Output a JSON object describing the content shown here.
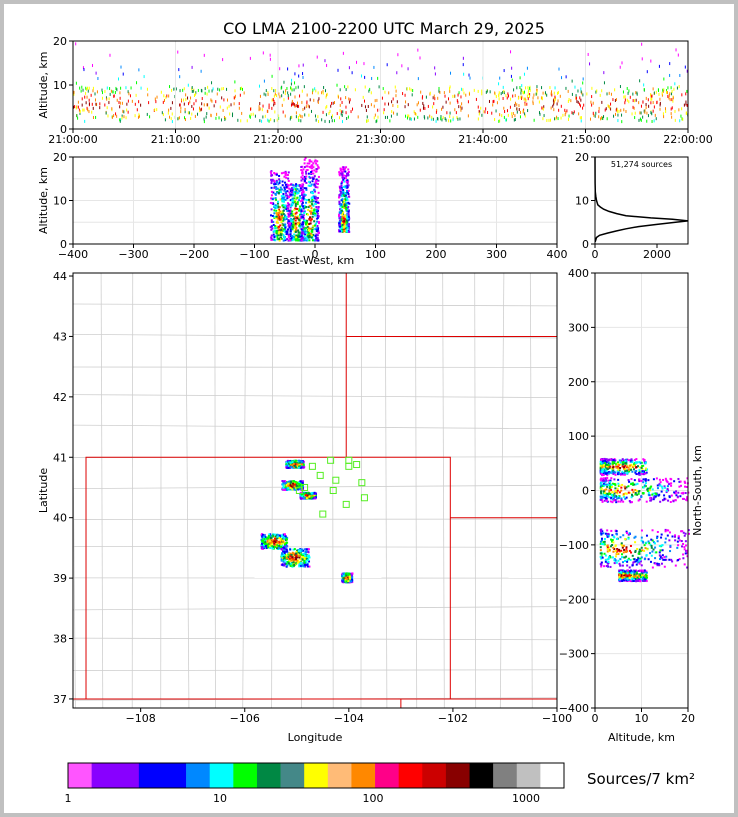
{
  "title": "CO LMA 2100-2200 UTC March 29, 2025",
  "chart_data": [
    {
      "type": "scatter",
      "panel": "altitude-time",
      "ylabel": "Altitude, km",
      "ylim": [
        0,
        20
      ],
      "yticks": [
        "0",
        "10",
        "20"
      ],
      "xticks": [
        "21:00:00",
        "21:10:00",
        "21:20:00",
        "21:30:00",
        "21:40:00",
        "21:50:00",
        "22:00:00"
      ]
    },
    {
      "type": "scatter",
      "panel": "east-west-altitude",
      "xlabel": "East-West, km",
      "ylabel": "Altitude, km",
      "xlim": [
        -400,
        400
      ],
      "ylim": [
        0,
        20
      ],
      "xticks": [
        "−400",
        "−300",
        "−200",
        "−100",
        "0",
        "100",
        "200",
        "300",
        "400"
      ],
      "yticks": [
        "0",
        "10",
        "20"
      ],
      "clusters": [
        {
          "x_min": -75,
          "x_max": -45,
          "alt_min": 1,
          "alt_max": 17
        },
        {
          "x_min": -45,
          "x_max": -20,
          "alt_min": 1,
          "alt_max": 14
        },
        {
          "x_min": -25,
          "x_max": 5,
          "alt_min": 1,
          "alt_max": 20
        },
        {
          "x_min": 38,
          "x_max": 55,
          "alt_min": 3,
          "alt_max": 18
        }
      ]
    },
    {
      "type": "line",
      "panel": "altitude-histogram",
      "annotation": "51,274 sources",
      "xlim": [
        0,
        3000
      ],
      "ylim": [
        0,
        20
      ],
      "xticks": [
        "0",
        "2000"
      ],
      "yticks": [
        "0",
        "10",
        "20"
      ],
      "profile": [
        {
          "alt": 0.5,
          "count": 5
        },
        {
          "alt": 1.5,
          "count": 50
        },
        {
          "alt": 2,
          "count": 150
        },
        {
          "alt": 2.5,
          "count": 400
        },
        {
          "alt": 3,
          "count": 700
        },
        {
          "alt": 3.5,
          "count": 1000
        },
        {
          "alt": 4,
          "count": 1400
        },
        {
          "alt": 4.5,
          "count": 2000
        },
        {
          "alt": 5,
          "count": 2600
        },
        {
          "alt": 5.3,
          "count": 3000
        },
        {
          "alt": 5.7,
          "count": 2500
        },
        {
          "alt": 6,
          "count": 1800
        },
        {
          "alt": 6.5,
          "count": 1000
        },
        {
          "alt": 7,
          "count": 700
        },
        {
          "alt": 7.5,
          "count": 450
        },
        {
          "alt": 8,
          "count": 280
        },
        {
          "alt": 8.5,
          "count": 170
        },
        {
          "alt": 9,
          "count": 90
        },
        {
          "alt": 10,
          "count": 50
        },
        {
          "alt": 11,
          "count": 25
        },
        {
          "alt": 12,
          "count": 10
        },
        {
          "alt": 14,
          "count": 4
        },
        {
          "alt": 20,
          "count": 0
        }
      ]
    },
    {
      "type": "scatter",
      "panel": "plan-view-map",
      "xlabel": "Longitude",
      "ylabel": "Latitude",
      "xlim": [
        -109.3,
        -100.0
      ],
      "ylim": [
        36.85,
        44.05
      ],
      "xticks": [
        "−108",
        "−106",
        "−104",
        "−102",
        "−100"
      ],
      "yticks": [
        "37",
        "38",
        "39",
        "40",
        "41",
        "42",
        "43",
        "44"
      ],
      "clusters": [
        {
          "lon": -105.05,
          "lat": 40.9,
          "w": 0.35,
          "h": 0.12
        },
        {
          "lon": -105.1,
          "lat": 40.55,
          "w": 0.4,
          "h": 0.15
        },
        {
          "lon": -104.8,
          "lat": 40.38,
          "w": 0.3,
          "h": 0.1
        },
        {
          "lon": -105.45,
          "lat": 39.62,
          "w": 0.5,
          "h": 0.25
        },
        {
          "lon": -105.05,
          "lat": 39.35,
          "w": 0.55,
          "h": 0.3
        },
        {
          "lon": -104.05,
          "lat": 39.02,
          "w": 0.2,
          "h": 0.15
        }
      ],
      "stations": [
        {
          "lon": -104.7,
          "lat": 40.85
        },
        {
          "lon": -104.35,
          "lat": 40.95
        },
        {
          "lon": -104.0,
          "lat": 40.85
        },
        {
          "lon": -103.85,
          "lat": 40.88
        },
        {
          "lon": -104.55,
          "lat": 40.7
        },
        {
          "lon": -104.25,
          "lat": 40.62
        },
        {
          "lon": -103.75,
          "lat": 40.58
        },
        {
          "lon": -104.85,
          "lat": 40.5
        },
        {
          "lon": -104.3,
          "lat": 40.45
        },
        {
          "lon": -103.7,
          "lat": 40.33
        },
        {
          "lon": -104.05,
          "lat": 40.22
        },
        {
          "lon": -104.5,
          "lat": 40.06
        },
        {
          "lon": -104.95,
          "lat": 40.45
        },
        {
          "lon": -104.0,
          "lat": 40.95
        }
      ]
    },
    {
      "type": "scatter",
      "panel": "altitude-north-south",
      "xlabel": "Altitude, km",
      "ylabel": "North-South, km",
      "xlim": [
        0,
        20
      ],
      "ylim": [
        -400,
        400
      ],
      "xticks": [
        "0",
        "10",
        "20"
      ],
      "yticks": [
        "−400",
        "−300",
        "−200",
        "−100",
        "0",
        "100",
        "200",
        "300",
        "400"
      ],
      "clusters": [
        {
          "alt_min": 1,
          "alt_max": 11,
          "ns_min": 30,
          "ns_max": 60
        },
        {
          "alt_min": 1,
          "alt_max": 20,
          "ns_min": -20,
          "ns_max": 25
        },
        {
          "alt_min": 1,
          "alt_max": 20,
          "ns_min": -140,
          "ns_max": -70
        },
        {
          "alt_min": 5,
          "alt_max": 11,
          "ns_min": -165,
          "ns_max": -145
        }
      ]
    },
    {
      "type": "table",
      "panel": "colorbar",
      "label": "Sources/7 km²",
      "ticks": [
        "1",
        "10",
        "100",
        "1000"
      ],
      "colors": [
        "#ff55ff",
        "#8800ff",
        "#8800ff",
        "#0000ff",
        "#0000ff",
        "#0088ff",
        "#00ffff",
        "#00ff00",
        "#008844",
        "#448888",
        "#ffff00",
        "#ffbb77",
        "#ff8800",
        "#ff0088",
        "#ff0000",
        "#cc0000",
        "#880000",
        "#000000",
        "#808080",
        "#c0c0c0",
        "#ffffff"
      ]
    }
  ]
}
